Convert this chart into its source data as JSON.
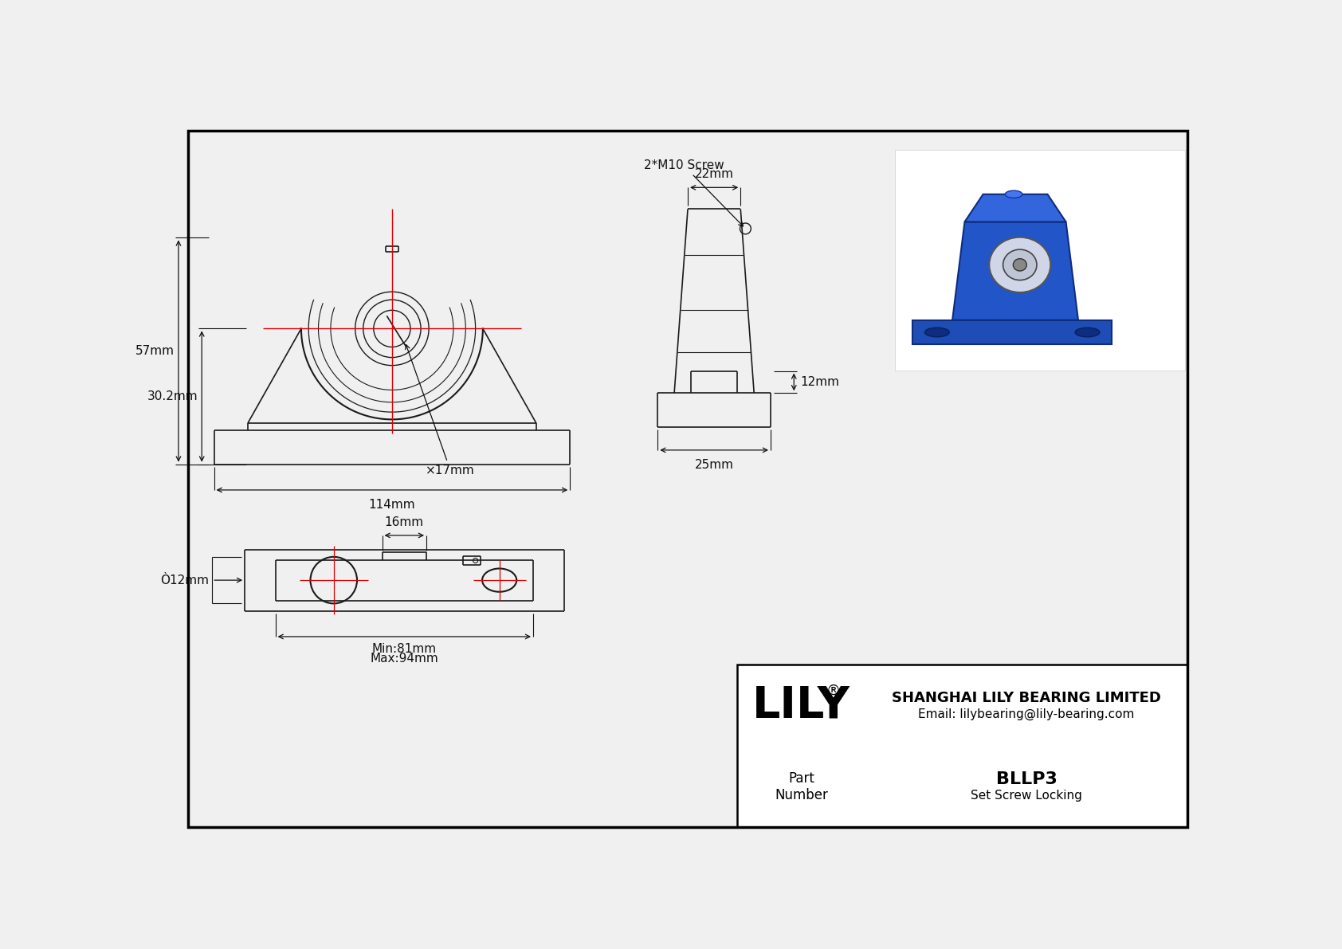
{
  "bg_color": "#f0f0f0",
  "line_color": "#1a1a1a",
  "dim_color": "#111111",
  "red_color": "#dd0000",
  "brand": "LILY",
  "brand_reg": "®",
  "title_company": "SHANGHAI LILY BEARING LIMITED",
  "title_email": "Email: lilybearing@lily-bearing.com",
  "part_label": "Part\nNumber",
  "part_number": "BLLP3",
  "part_desc": "Set Screw Locking",
  "dim_57": "57mm",
  "dim_30_2": "30.2mm",
  "dim_114": "114mm",
  "dim_17": "×17mm",
  "dim_22": "22mm",
  "dim_12_side": "12mm",
  "dim_25": "25mm",
  "dim_16": "16mm",
  "dim_phi12": "Ò12mm",
  "dim_min81": "Min:81mm",
  "dim_max94": "Max:94mm",
  "dim_screw": "2*M10 Screw"
}
